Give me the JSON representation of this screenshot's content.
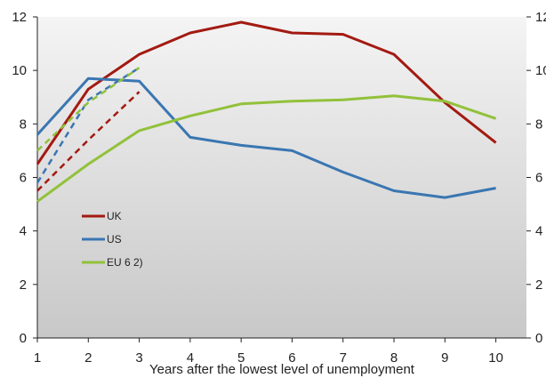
{
  "chart_data": {
    "type": "line",
    "title": "",
    "xlabel": "Years after the lowest level of unemployment",
    "ylabel": "",
    "x": [
      1,
      2,
      3,
      4,
      5,
      6,
      7,
      8,
      9,
      10
    ],
    "xlim": [
      1,
      10.6
    ],
    "ylim": [
      0,
      12
    ],
    "yticks": [
      0,
      2,
      4,
      6,
      8,
      10,
      12
    ],
    "grid": false,
    "background": "vertical gradient (light grey top to darker grey bottom)",
    "legend_position": "center-left",
    "series": [
      {
        "name": "UK",
        "color": "#a31a12",
        "style": "solid",
        "x": [
          1,
          2,
          3,
          4,
          5,
          6,
          7,
          8,
          9,
          10
        ],
        "values": [
          6.5,
          9.3,
          10.6,
          11.4,
          11.8,
          11.4,
          11.35,
          10.6,
          8.8,
          7.3
        ]
      },
      {
        "name": "US",
        "color": "#3a76b2",
        "style": "solid",
        "x": [
          1,
          2,
          3,
          4,
          5,
          6,
          7,
          8,
          9,
          10
        ],
        "values": [
          7.6,
          9.7,
          9.6,
          7.5,
          7.2,
          7.0,
          6.2,
          5.5,
          5.25,
          5.6
        ]
      },
      {
        "name": "EU 6 2)",
        "color": "#92c13a",
        "style": "solid",
        "x": [
          1,
          2,
          3,
          4,
          5,
          6,
          7,
          8,
          9,
          10
        ],
        "values": [
          5.1,
          6.5,
          7.75,
          8.3,
          8.75,
          8.85,
          8.9,
          9.05,
          8.85,
          8.2
        ]
      },
      {
        "name": "",
        "color": "#a31a12",
        "style": "dashed",
        "x": [
          1,
          2,
          3
        ],
        "values": [
          5.5,
          7.4,
          9.2
        ]
      },
      {
        "name": "",
        "color": "#3a76b2",
        "style": "dashed",
        "x": [
          1,
          2,
          3
        ],
        "values": [
          5.8,
          8.9,
          10.1
        ]
      },
      {
        "name": "",
        "color": "#92c13a",
        "style": "dashed",
        "x": [
          1,
          2,
          3
        ],
        "values": [
          7.0,
          8.8,
          10.1
        ]
      }
    ]
  }
}
